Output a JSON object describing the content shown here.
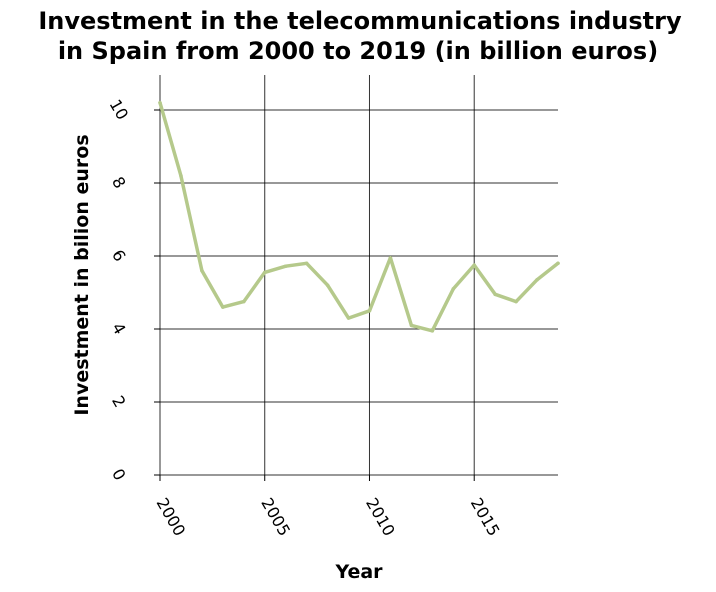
{
  "chart_data": {
    "type": "line",
    "title": "Investment in the telecommunications industry in Spain from 2000 to 2019 (in billion euros)",
    "title_lines": [
      "Investment in the telecommunications industry",
      "in Spain from 2000 to 2019 (in billion euros)"
    ],
    "xlabel": "Year",
    "ylabel": "Investment in bilion euros",
    "xlim": [
      2000,
      2019
    ],
    "ylim": [
      0,
      10
    ],
    "x_ticks": [
      2000,
      2005,
      2010,
      2015
    ],
    "y_ticks": [
      0,
      2,
      4,
      6,
      8,
      10
    ],
    "grid": true,
    "series": [
      {
        "color": "#b5c98b",
        "x": [
          2000,
          2001,
          2002,
          2003,
          2004,
          2005,
          2006,
          2007,
          2008,
          2009,
          2010,
          2011,
          2012,
          2013,
          2014,
          2015,
          2016,
          2017,
          2018,
          2019
        ],
        "values": [
          10.2,
          8.2,
          5.6,
          4.6,
          4.75,
          5.55,
          5.72,
          5.8,
          5.2,
          4.3,
          4.5,
          5.95,
          4.1,
          3.95,
          5.1,
          5.75,
          4.95,
          4.75,
          5.35,
          5.8
        ]
      }
    ]
  }
}
